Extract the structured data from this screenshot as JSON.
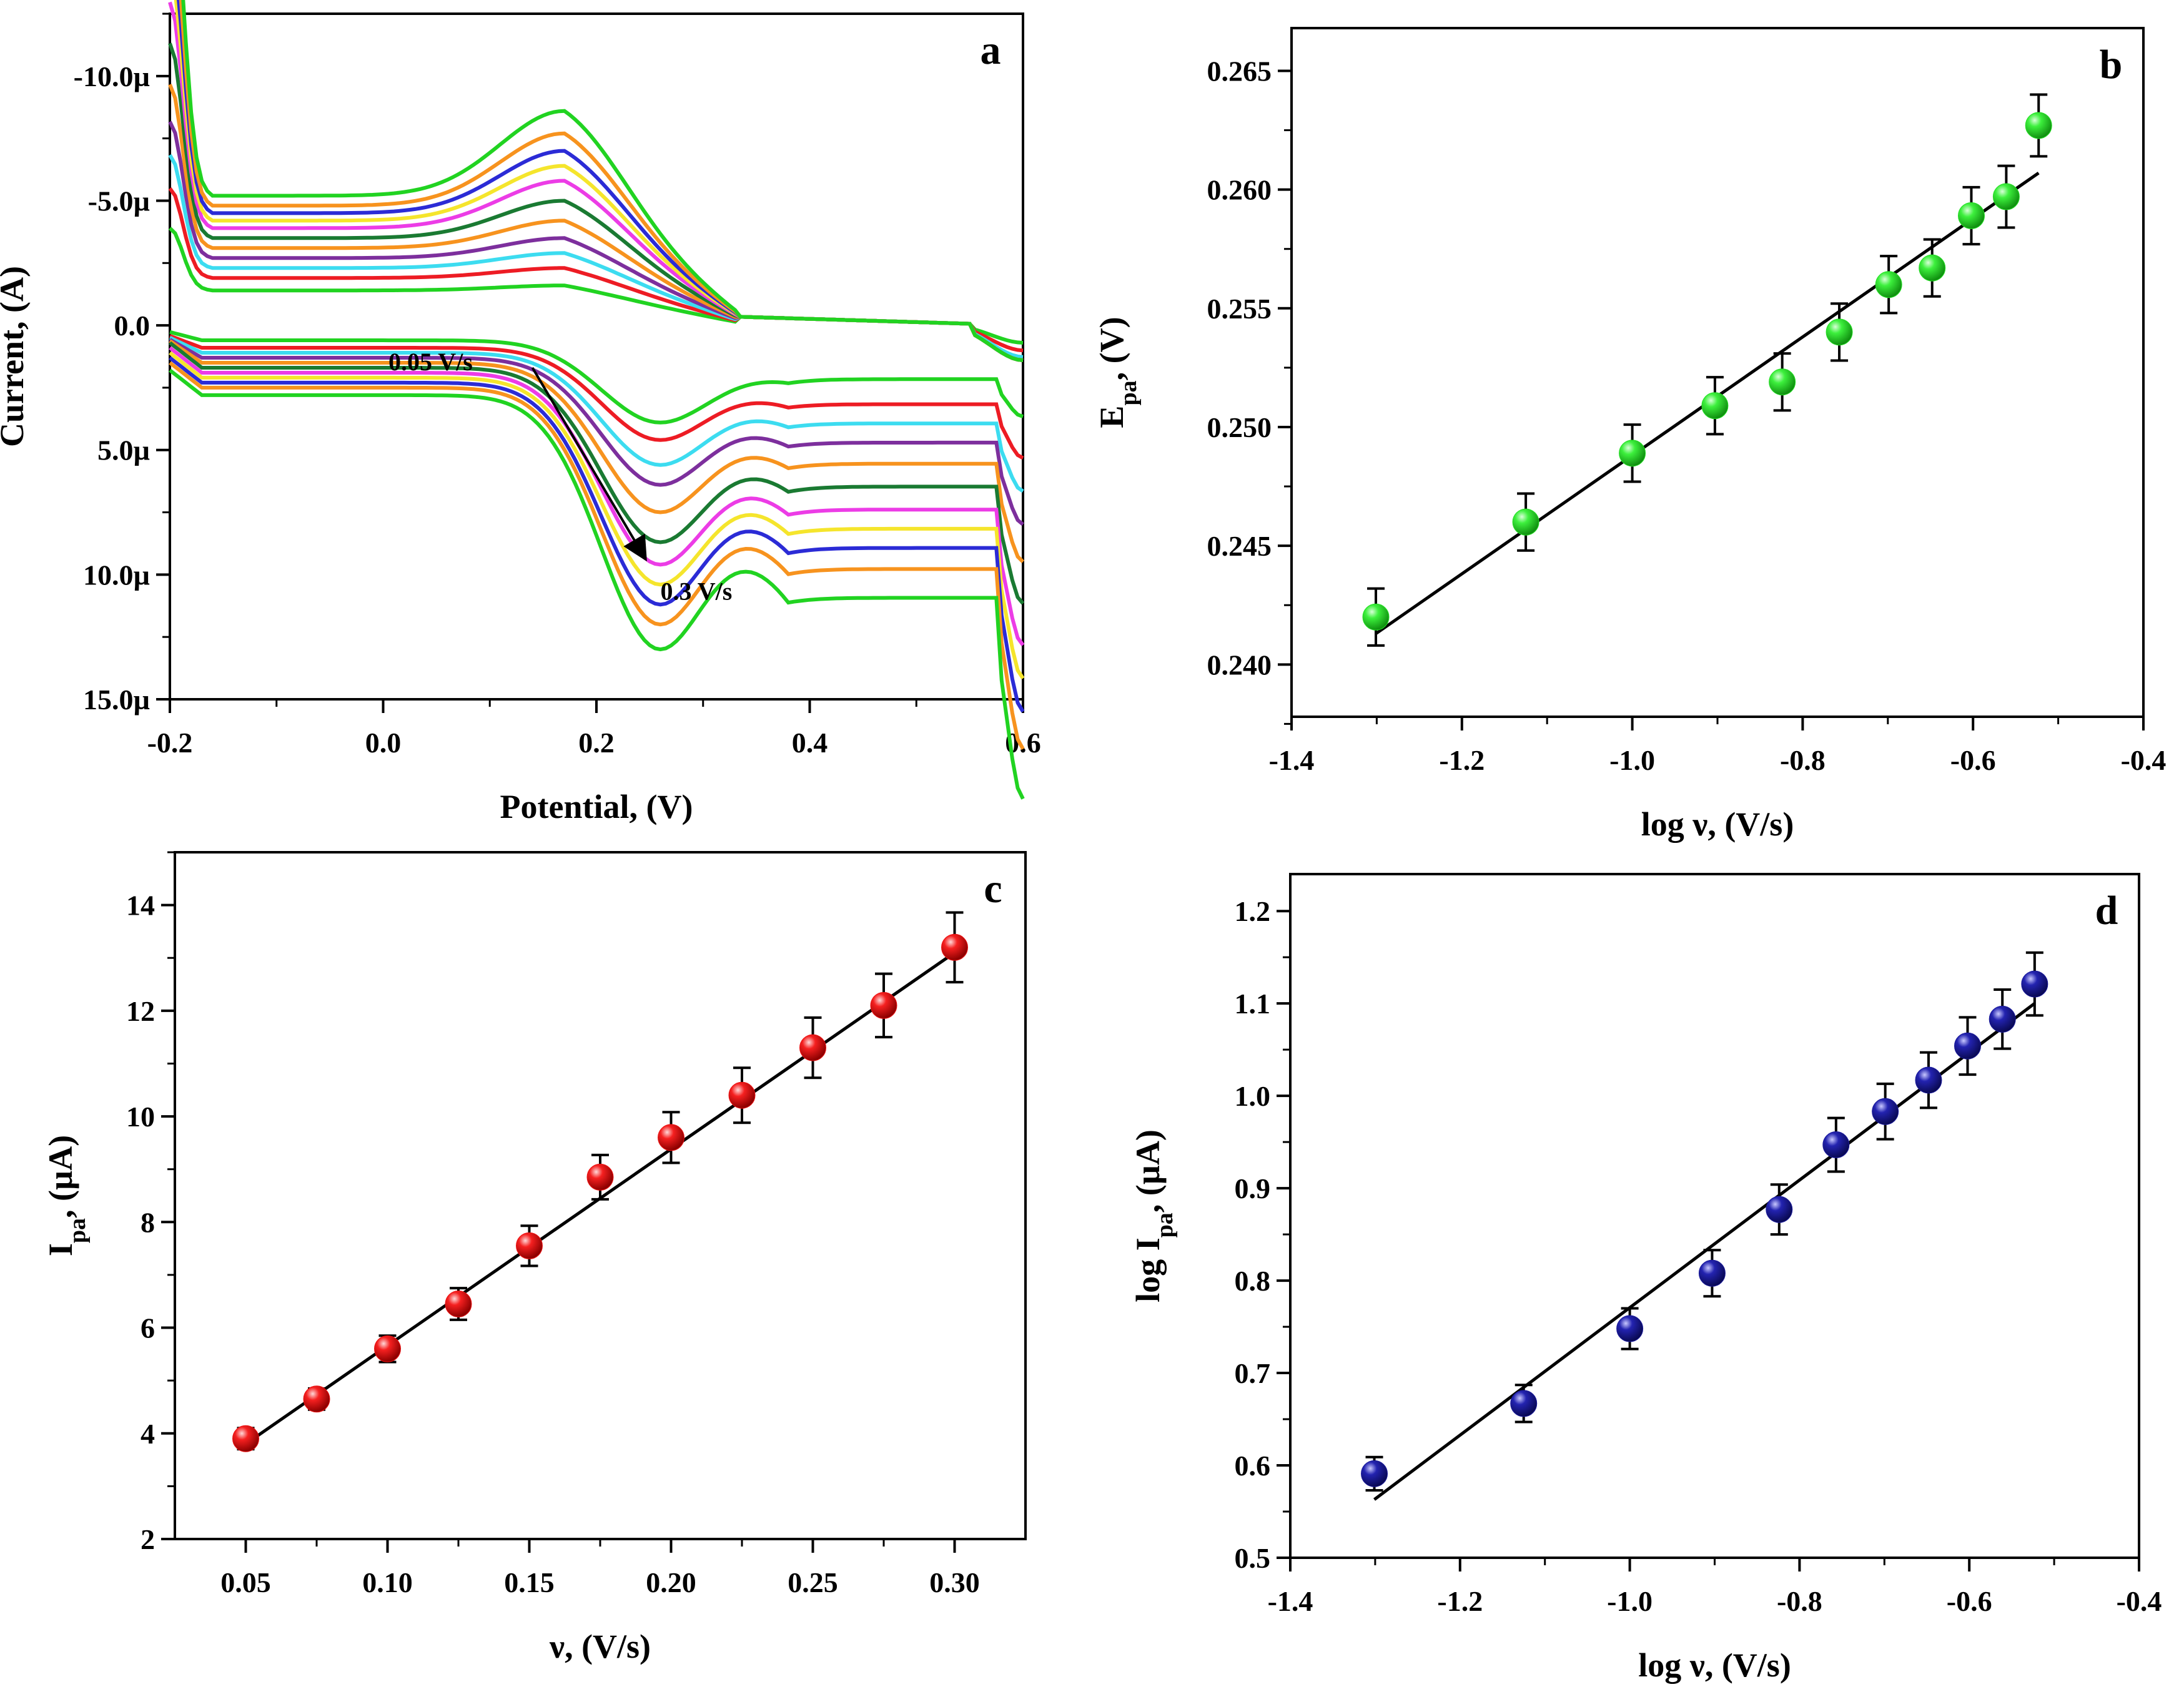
{
  "chart_data": [
    {
      "type": "line",
      "panel_label": "a",
      "xlabel": "Potential, (V)",
      "ylabel": "Current, (A)",
      "xlim": [
        -0.2,
        0.6
      ],
      "ylim": [
        -12.5,
        15.0
      ],
      "y_reversed": true,
      "x_ticks": [
        "-0.2",
        "0.0",
        "0.2",
        "0.4",
        "0.6"
      ],
      "y_ticks": [
        "-10.0µ",
        "-5.0µ",
        "0.0",
        "5.0µ",
        "10.0µ",
        "15.0µ"
      ],
      "annotations": [
        "0.05 V/s",
        "0.3 V/s"
      ],
      "scan_rate_arrow": {
        "from": [
          0.14,
          1.7
        ],
        "to": [
          0.245,
          9.3
        ]
      },
      "colors": [
        "#21d321",
        "#ed1c24",
        "#3cdcf0",
        "#7d2f9d",
        "#f7931e",
        "#1a7a32",
        "#ec3ce6",
        "#f5e52c",
        "#2b2bd6",
        "#f7931e",
        "#21d321"
      ],
      "series": [
        {
          "scan_rate": 0.05,
          "anodic_peak_uA": -1.6,
          "cathodic_peak_uA": 3.9,
          "baseline_upper_uA": -1.4,
          "baseline_lower_uA": 0.6
        },
        {
          "scan_rate": 0.075,
          "anodic_peak_uA": -2.3,
          "cathodic_peak_uA": 4.6,
          "baseline_upper_uA": -1.9,
          "baseline_lower_uA": 0.9
        },
        {
          "scan_rate": 0.1,
          "anodic_peak_uA": -2.9,
          "cathodic_peak_uA": 5.6,
          "baseline_upper_uA": -2.3,
          "baseline_lower_uA": 1.1
        },
        {
          "scan_rate": 0.125,
          "anodic_peak_uA": -3.5,
          "cathodic_peak_uA": 6.4,
          "baseline_upper_uA": -2.7,
          "baseline_lower_uA": 1.3
        },
        {
          "scan_rate": 0.15,
          "anodic_peak_uA": -4.2,
          "cathodic_peak_uA": 7.5,
          "baseline_upper_uA": -3.1,
          "baseline_lower_uA": 1.5
        },
        {
          "scan_rate": 0.175,
          "anodic_peak_uA": -5.0,
          "cathodic_peak_uA": 8.7,
          "baseline_upper_uA": -3.5,
          "baseline_lower_uA": 1.7
        },
        {
          "scan_rate": 0.2,
          "anodic_peak_uA": -5.8,
          "cathodic_peak_uA": 9.6,
          "baseline_upper_uA": -3.9,
          "baseline_lower_uA": 1.9
        },
        {
          "scan_rate": 0.225,
          "anodic_peak_uA": -6.4,
          "cathodic_peak_uA": 10.4,
          "baseline_upper_uA": -4.2,
          "baseline_lower_uA": 2.1
        },
        {
          "scan_rate": 0.25,
          "anodic_peak_uA": -7.0,
          "cathodic_peak_uA": 11.2,
          "baseline_upper_uA": -4.5,
          "baseline_lower_uA": 2.3
        },
        {
          "scan_rate": 0.275,
          "anodic_peak_uA": -7.7,
          "cathodic_peak_uA": 12.0,
          "baseline_upper_uA": -4.8,
          "baseline_lower_uA": 2.5
        },
        {
          "scan_rate": 0.3,
          "anodic_peak_uA": -8.6,
          "cathodic_peak_uA": 13.0,
          "baseline_upper_uA": -5.2,
          "baseline_lower_uA": 2.8
        }
      ]
    },
    {
      "type": "scatter",
      "panel_label": "b",
      "xlabel": "log ν, (V/s)",
      "ylabel_main": "E",
      "ylabel_sub": "pa",
      "ylabel_rest": ", (V)",
      "xlim": [
        -1.4,
        -0.4
      ],
      "ylim": [
        0.2378,
        0.2668
      ],
      "x_ticks": [
        "-1.4",
        "-1.2",
        "-1.0",
        "-0.8",
        "-0.6",
        "-0.4"
      ],
      "y_ticks": [
        "0.240",
        "0.245",
        "0.250",
        "0.255",
        "0.260",
        "0.265"
      ],
      "marker_color": "#22e022",
      "x": [
        -1.301,
        -1.125,
        -1.0,
        -0.903,
        -0.824,
        -0.757,
        -0.699,
        -0.648,
        -0.602,
        -0.561,
        -0.523
      ],
      "y": [
        0.242,
        0.246,
        0.2489,
        0.2509,
        0.2519,
        0.254,
        0.256,
        0.2567,
        0.2589,
        0.2597,
        0.2627
      ],
      "err": [
        0.0012,
        0.0012,
        0.0012,
        0.0012,
        0.0012,
        0.0012,
        0.0012,
        0.0012,
        0.0012,
        0.0013,
        0.0013
      ],
      "fit": {
        "x": [
          -1.301,
          -0.523
        ],
        "y": [
          0.2413,
          0.2607
        ]
      }
    },
    {
      "type": "scatter",
      "panel_label": "c",
      "xlabel": "ν, (V/s)",
      "ylabel_main": "I",
      "ylabel_sub": "pa",
      "ylabel_rest": ",  (µA)",
      "xlim": [
        0.025,
        0.325
      ],
      "ylim": [
        2,
        15
      ],
      "x_ticks": [
        "0.05",
        "0.10",
        "0.15",
        "0.20",
        "0.25",
        "0.30"
      ],
      "y_ticks": [
        "2",
        "4",
        "6",
        "8",
        "10",
        "12",
        "14"
      ],
      "marker_color": "#ee1111",
      "x": [
        0.05,
        0.075,
        0.1,
        0.125,
        0.15,
        0.175,
        0.2,
        0.225,
        0.25,
        0.275,
        0.3
      ],
      "y": [
        3.9,
        4.65,
        5.6,
        6.45,
        7.55,
        8.85,
        9.6,
        10.4,
        11.3,
        12.1,
        13.2
      ],
      "err": [
        0.2,
        0.2,
        0.25,
        0.3,
        0.38,
        0.42,
        0.48,
        0.52,
        0.57,
        0.6,
        0.66
      ],
      "fit": {
        "x": [
          0.05,
          0.3
        ],
        "y": [
          3.8,
          13.1
        ]
      }
    },
    {
      "type": "scatter",
      "panel_label": "d",
      "xlabel": "log ν, (V/s)",
      "ylabel_main": "log I",
      "ylabel_sub": "pa",
      "ylabel_rest": ", (µA)",
      "xlim": [
        -1.4,
        -0.4
      ],
      "ylim": [
        0.5,
        1.24
      ],
      "x_ticks": [
        "-1.4",
        "-1.2",
        "-1.0",
        "-0.8",
        "-0.6",
        "-0.4"
      ],
      "y_ticks": [
        "0.5",
        "0.6",
        "0.7",
        "0.8",
        "0.9",
        "1.0",
        "1.1",
        "1.2"
      ],
      "marker_color": "#1a1a9c",
      "x": [
        -1.301,
        -1.125,
        -1.0,
        -0.903,
        -0.824,
        -0.757,
        -0.699,
        -0.648,
        -0.602,
        -0.561,
        -0.523
      ],
      "y": [
        0.591,
        0.667,
        0.748,
        0.808,
        0.877,
        0.947,
        0.983,
        1.017,
        1.054,
        1.083,
        1.121
      ],
      "err": [
        0.018,
        0.02,
        0.022,
        0.025,
        0.027,
        0.029,
        0.03,
        0.03,
        0.031,
        0.032,
        0.034
      ],
      "fit": {
        "x": [
          -1.301,
          -0.523
        ],
        "y": [
          0.563,
          1.1
        ]
      }
    }
  ]
}
